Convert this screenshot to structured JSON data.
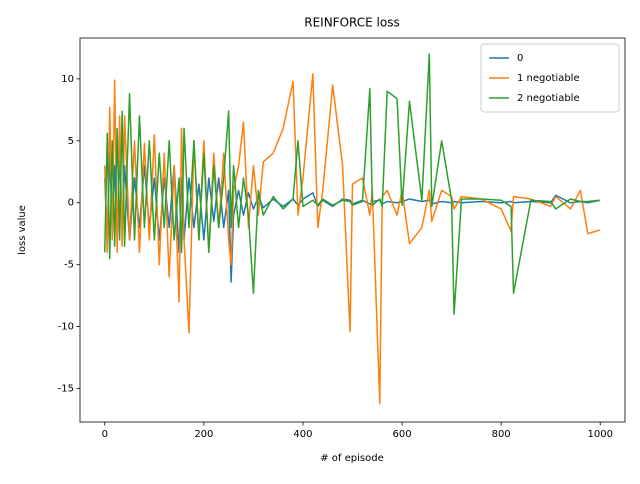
{
  "chart_data": {
    "type": "line",
    "title": "REINFORCE loss",
    "x_label": "# of episode",
    "y_label": "loss value",
    "x": [
      0,
      5,
      10,
      15,
      20,
      25,
      30,
      35,
      40,
      50,
      60,
      70,
      80,
      90,
      100,
      110,
      120,
      130,
      140,
      150,
      155,
      160,
      170,
      180,
      190,
      200,
      210,
      220,
      230,
      240,
      250,
      255,
      260,
      270,
      280,
      290,
      300,
      310,
      320,
      340,
      360,
      380,
      390,
      400,
      420,
      430,
      440,
      460,
      480,
      495,
      500,
      520,
      535,
      540,
      555,
      560,
      570,
      590,
      600,
      615,
      640,
      655,
      660,
      680,
      700,
      705,
      720,
      760,
      800,
      820,
      825,
      860,
      900,
      910,
      940,
      960,
      975,
      999
    ],
    "series": [
      {
        "name": "0",
        "color": "#1f77b4",
        "values": [
          2,
          -3,
          4,
          -2,
          3,
          -3,
          4,
          -2,
          3,
          -3,
          2,
          -2,
          3,
          -2,
          2,
          -3,
          2,
          -2,
          3,
          -4,
          2,
          -3,
          2,
          -2,
          1.5,
          -3,
          2,
          -1.5,
          2,
          -2,
          1,
          -6.4,
          -1,
          1,
          -1,
          0.8,
          -0.5,
          0.5,
          -0.4,
          0.3,
          -0.3,
          0.3,
          -0.2,
          0.3,
          0.8,
          -0.3,
          0.2,
          -0.3,
          0.3,
          0.2,
          -0.1,
          0.2,
          -0.1,
          0.1,
          0.2,
          -0.1,
          0.1,
          0,
          0.1,
          0.3,
          0.1,
          0.2,
          -0.1,
          0.1,
          0,
          0.1,
          0,
          0.1,
          0,
          0.1,
          0,
          0.1,
          0,
          0.6,
          0,
          0.1,
          0,
          0.2
        ]
      },
      {
        "name": "1 negotiable",
        "color": "#ff7f0e",
        "values": [
          3,
          -4,
          7.7,
          -3,
          9.9,
          -4,
          7,
          -3.5,
          7,
          -3,
          5,
          -4,
          4.8,
          -3,
          5.5,
          -5,
          4,
          -6,
          3,
          -8,
          6,
          -3,
          -10.5,
          5,
          -3,
          5,
          -4,
          4,
          -2,
          4,
          -3,
          -5,
          1,
          3,
          6.5,
          -2,
          3,
          -1,
          3.3,
          4,
          6,
          9.8,
          -1,
          2,
          10.4,
          -2,
          1,
          9.5,
          3,
          -10.4,
          1.5,
          2,
          -1,
          1,
          -16.2,
          0.5,
          1,
          -1,
          1,
          -3.3,
          -2,
          1,
          -1.5,
          1,
          0.5,
          -0.5,
          0.5,
          0.3,
          -0.5,
          -2.3,
          0.5,
          0.3,
          -0.3,
          0.5,
          -0.5,
          1,
          -2.5,
          -2.2
        ]
      },
      {
        "name": "2 negotiable",
        "color": "#2ca02c",
        "values": [
          -4,
          5.6,
          -4.5,
          5,
          -3.5,
          6,
          -3,
          7.4,
          -3.5,
          8.8,
          -3,
          7,
          -2,
          5,
          -3,
          4,
          -2,
          5,
          -3,
          2,
          -4,
          6,
          -2,
          5,
          -3,
          4,
          -4,
          3,
          -2,
          2,
          7.4,
          -2,
          3,
          -2,
          2,
          -1,
          -7.3,
          1,
          -1,
          0.5,
          -0.5,
          0.3,
          5,
          -0.3,
          0.2,
          -0.2,
          0.3,
          -0.2,
          0.2,
          0.1,
          -0.2,
          0.1,
          9.2,
          -0.2,
          0.3,
          -0.3,
          9,
          8.4,
          -0.2,
          8.2,
          0.2,
          12,
          -0.3,
          5,
          0.2,
          -9,
          0.3,
          0.3,
          0.2,
          -0.3,
          -7.3,
          0.2,
          0.1,
          -0.5,
          0.3,
          0.1,
          0.1,
          0.2
        ]
      }
    ],
    "xlim": [
      -50,
      1050
    ],
    "ylim": [
      -17.7,
      13.3
    ],
    "xticks": [
      0,
      200,
      400,
      600,
      800,
      1000
    ],
    "yticks": [
      -15,
      -10,
      -5,
      0,
      5,
      10
    ],
    "grid": false,
    "legend": "upper right"
  }
}
